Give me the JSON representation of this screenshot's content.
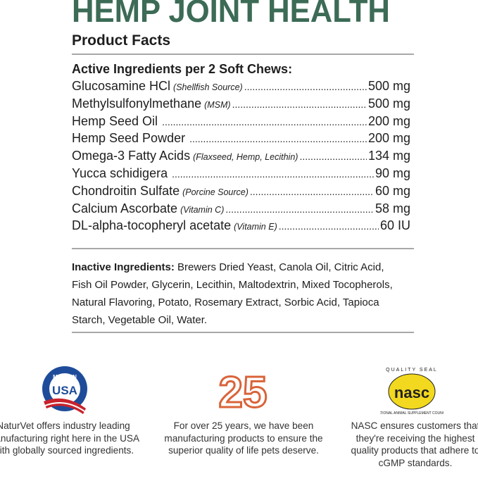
{
  "title": "HEMP JOINT HEALTH",
  "subtitle": "Product Facts",
  "active_heading": "Active Ingredients per 2 Soft Chews:",
  "ingredients": [
    {
      "name": "Glucosamine HCl",
      "note": "(Shellfish Source)",
      "amount": "500 mg"
    },
    {
      "name": "Methylsulfonylmethane",
      "note": "(MSM)",
      "amount": "500 mg"
    },
    {
      "name": "Hemp Seed Oil",
      "note": "",
      "amount": "200 mg"
    },
    {
      "name": "Hemp Seed Powder",
      "note": "",
      "amount": "200 mg"
    },
    {
      "name": "Omega-3 Fatty Acids",
      "note": "(Flaxseed, Hemp, Lecithin)",
      "amount": "134 mg"
    },
    {
      "name": "Yucca schidigera",
      "note": "",
      "amount": "90 mg"
    },
    {
      "name": "Chondroitin Sulfate",
      "note": "(Porcine Source)",
      "amount": "60 mg"
    },
    {
      "name": "Calcium Ascorbate",
      "note": "(Vitamin C)",
      "amount": "58 mg"
    },
    {
      "name": "DL-alpha-tocopheryl acetate",
      "note": "(Vitamin E)",
      "amount": "60 IU"
    }
  ],
  "inactive": {
    "label": "Inactive Ingredients:",
    "text": " Brewers Dried Yeast, Canola Oil, Citric Acid, Fish Oil Powder, Glycerin, Lecithin, Maltodextrin, Mixed Tocopherols, Natural Flavoring, Potato, Rosemary Extract, Sorbic Acid, Tapioca Starch, Vegetable Oil, Water."
  },
  "badges": [
    {
      "icon": "made-in-usa-badge",
      "logo_text": "MADE IN USA",
      "text": "NaturVet offers industry leading manufacturing right here in the USA with globally sourced ingredients."
    },
    {
      "icon": "25-years-logo",
      "logo_text": "25",
      "text": "For over 25 years, we have been manufacturing products to ensure the superior quality of life pets deserve."
    },
    {
      "icon": "nasc-quality-seal",
      "logo_text": "QUALITY SEAL nasc NATIONAL ANIMAL SUPPLEMENT COUNCIL",
      "text": "NASC ensures customers that they're receiving the highest quality products that adhere to cGMP standards."
    }
  ],
  "colors": {
    "title": "#3c6b56",
    "accent_orange": "#d9643a",
    "nasc_yellow": "#f2d81e",
    "usa_blue": "#1f4c9a",
    "usa_red": "#c8232c"
  }
}
